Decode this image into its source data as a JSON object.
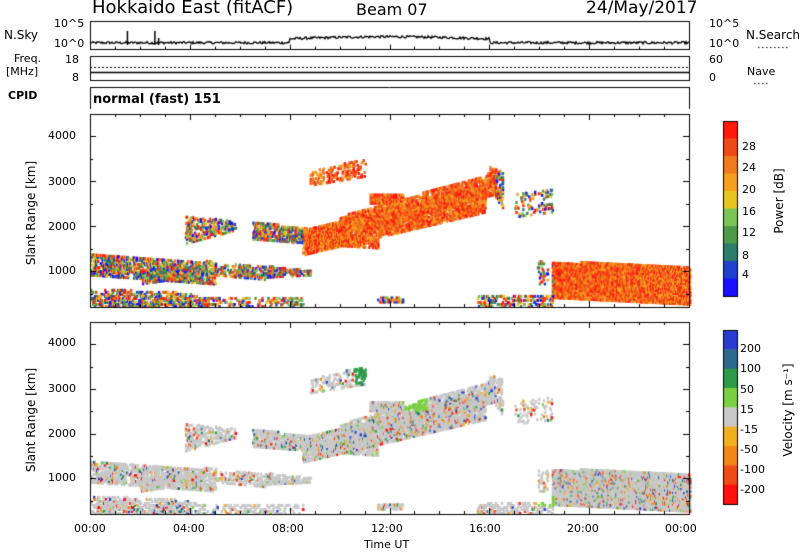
{
  "header": {
    "radar": "Hokkaido East (fitACF)",
    "beam": "Beam 07",
    "date": "24/May/2017"
  },
  "panels": {
    "noise": {
      "left_label": "N.Sky",
      "right_label": "N.Search",
      "ticks": [
        "10^5",
        "10^0"
      ]
    },
    "freq": {
      "left_label_1": "Freq.",
      "left_label_2": "[MHz]",
      "left_ticks": [
        "18",
        "8"
      ],
      "right_ticks": [
        "60",
        "0"
      ],
      "right_label": "Nave"
    },
    "cpid": {
      "label": "CPID",
      "mode": "normal (fast) 151"
    }
  },
  "chart_data": [
    {
      "type": "heatmap",
      "name": "power",
      "ylabel": "Slant Range [km]",
      "xlabel": "Time UT",
      "yticks": [
        "1000",
        "2000",
        "3000",
        "4000"
      ],
      "ylim": [
        200,
        4500
      ],
      "xlim": [
        "00:00",
        "24:00"
      ],
      "colorbar": {
        "label": "Power [dB]",
        "ticks": [
          "4",
          "8",
          "12",
          "16",
          "20",
          "24",
          "28"
        ],
        "colors": [
          "#1a10ff",
          "#2040d0",
          "#2e7c6c",
          "#4f9a4a",
          "#7bc45a",
          "#e6c520",
          "#f5a021",
          "#f07a1e",
          "#ee4a18",
          "#ff1a10"
        ]
      }
    },
    {
      "type": "heatmap",
      "name": "velocity",
      "ylabel": "Slant Range [km]",
      "xlabel": "Time UT",
      "yticks": [
        "1000",
        "2000",
        "3000",
        "4000"
      ],
      "ylim": [
        200,
        4500
      ],
      "xlim": [
        "00:00",
        "24:00"
      ],
      "colorbar": {
        "label": "Velocity [m s⁻¹]",
        "ticks": [
          "200",
          "100",
          "50",
          "15",
          "-15",
          "-50",
          "-100",
          "-200"
        ],
        "colors": [
          "#2a3bd0",
          "#2c6a8c",
          "#2f9a4a",
          "#7ad040",
          "#c8c8c8",
          "#f0b020",
          "#f08818",
          "#f04c18",
          "#ff1010"
        ]
      }
    }
  ],
  "time_axis": {
    "ticks": [
      "00:00",
      "04:00",
      "08:00",
      "12:00",
      "16:00",
      "20:00",
      "00:00"
    ],
    "label": "Time UT"
  }
}
